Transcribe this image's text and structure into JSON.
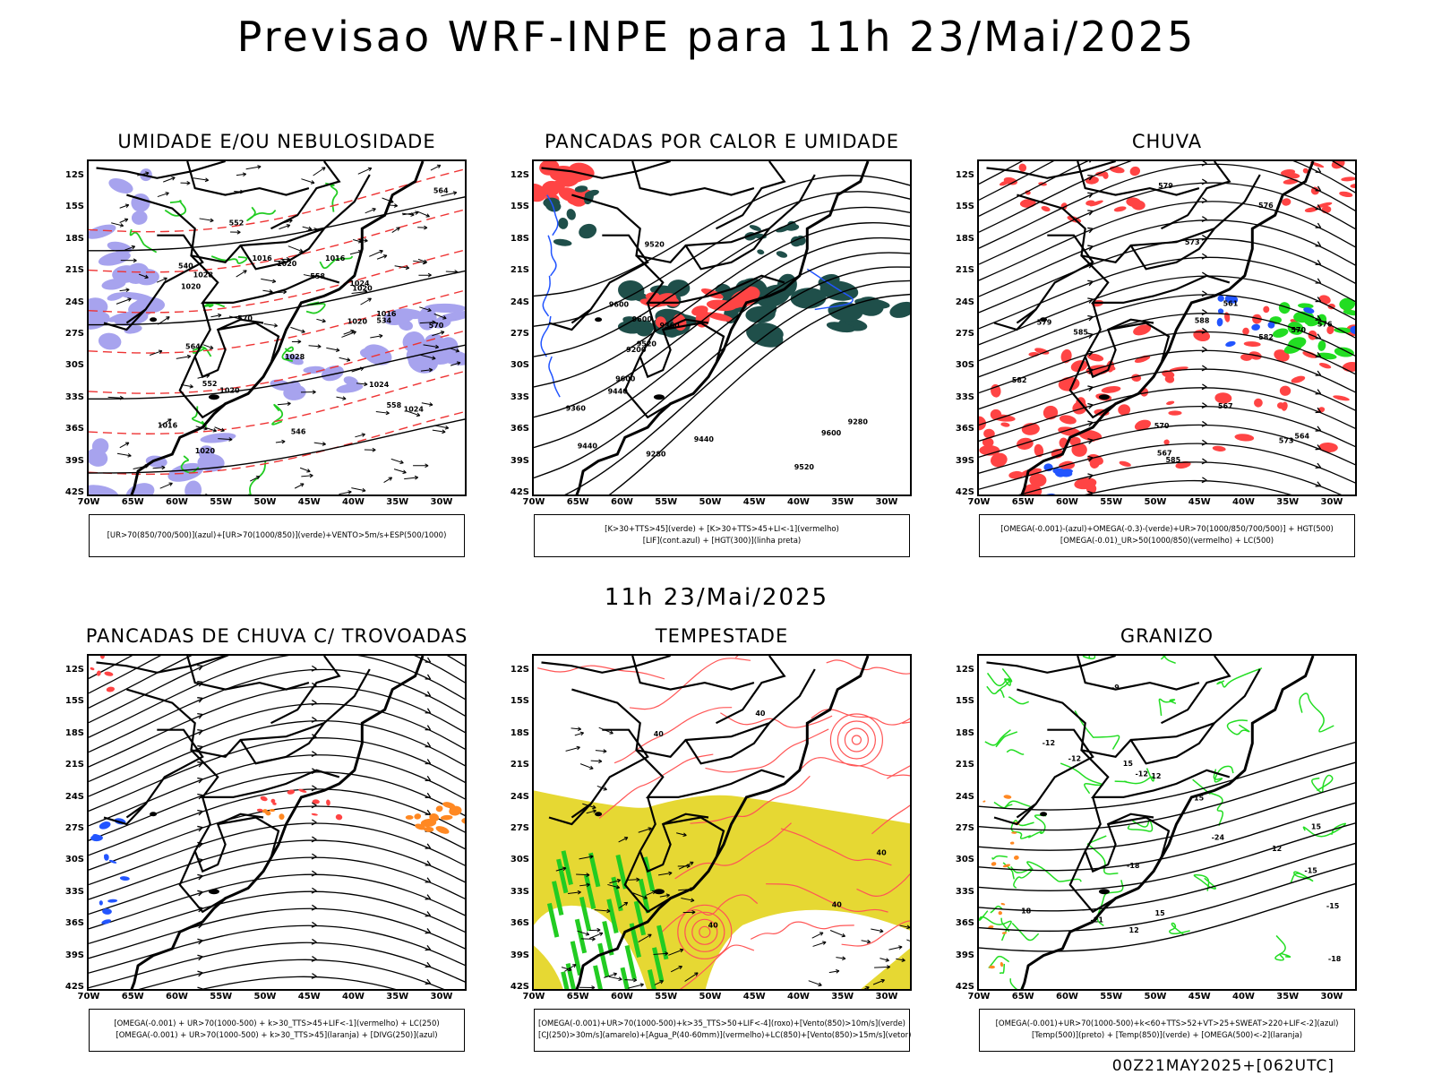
{
  "title": "Previsao WRF-INPE  para 11h 23/Mai/2025",
  "mid_title": "11h 23/Mai/2025",
  "footer": "00Z21MAY2025+[062UTC]",
  "lat_labels": [
    "12S",
    "15S",
    "18S",
    "21S",
    "24S",
    "27S",
    "30S",
    "33S",
    "36S",
    "39S",
    "42S"
  ],
  "lon_labels": [
    "70W",
    "65W",
    "60W",
    "55W",
    "50W",
    "45W",
    "40W",
    "35W",
    "30W"
  ],
  "colors": {
    "umidade_blue": "#a7a3ee",
    "umidade_green": "#22cc22",
    "thickness_red": "#ee3333",
    "pancadas_red": "#ff4444",
    "pancadas_dark": "#1f4f4a",
    "lif_blue": "#2255ff",
    "chuva_green": "#22dd22",
    "orange": "#ff8822",
    "tempestade_yellow": "#e6d833",
    "tempestade_red": "#ff5555"
  },
  "panels": [
    {
      "title": "UMIDADE E/OU NEBULOSIDADE",
      "legend": [
        "[UR>70(850/700/500)](azul)+[UR>70(1000/850)](verde)+VENTO>5m/s+ESP(500/1000)"
      ],
      "labels": [
        "1016",
        "1016",
        "1020",
        "1024",
        "1020",
        "1020",
        "1020",
        "1020",
        "1024",
        "1028",
        "1028",
        "1020",
        "1016",
        "1016",
        "1024",
        "570",
        "564",
        "558",
        "552",
        "546",
        "540",
        "534",
        "570",
        "564",
        "552",
        "558"
      ]
    },
    {
      "title": "PANCADAS POR CALOR E UMIDADE",
      "legend": [
        "[K>30+TTS>45](verde) + [K>30+TTS>45+LI<-1](vermelho)",
        "[LIF](cont.azul) + [HGT(300)](linha preta)"
      ],
      "labels": [
        "9600",
        "9600",
        "9600",
        "9520",
        "9440",
        "9360",
        "9280",
        "9200",
        "9520",
        "9440",
        "9360",
        "9280",
        "9440",
        "9600",
        "9520"
      ]
    },
    {
      "title": "CHUVA",
      "legend": [
        "[OMEGA(-0.001)-(azul)+OMEGA(-0.3)-(verde)+UR>70(1000/850/700/500)] + HGT(500)",
        "[OMEGA(-0.01)_UR>50(1000/850)(vermelho) + LC(500)"
      ],
      "labels": [
        "585",
        "582",
        "579",
        "576",
        "573",
        "570",
        "567",
        "564",
        "561",
        "588",
        "585",
        "582",
        "579",
        "576",
        "573",
        "570",
        "567"
      ]
    },
    {
      "title": "PANCADAS DE CHUVA C/ TROVOADAS",
      "legend": [
        "[OMEGA(-0.001) + UR>70(1000-500) + k>30_TTS>45+LIF<-1](vermelho) + LC(250)",
        "[OMEGA(-0.001) + UR>70(1000-500) + k>30_TTS>45](laranja) + [DIVG(250)](azul)"
      ],
      "labels": []
    },
    {
      "title": "TEMPESTADE",
      "legend": [
        "[OMEGA(-0.001)+UR>70(1000-500)+k>35_TTS>50+LIF<-4](roxo)+[Vento(850)>10m/s](verde)",
        "[CJ(250)>30m/s](amarelo)+[Agua_P(40-60mm)](vermelho)+LC(850)+[Vento(850)>15m/s](vetor)"
      ],
      "labels": [
        "40",
        "40",
        "40",
        "40",
        "40"
      ]
    },
    {
      "title": "GRANIZO",
      "legend": [
        "[OMEGA(-0.001)+UR>70(1000-500)+k<60+TTS>52+VT>25+SWEAT>220+LIF<-2](azul)",
        "[Temp(500)](preto) + [Temp(850)](verde) + [OMEGA(500)<-2](laranja)"
      ],
      "labels": [
        "-9",
        "-12",
        "-15",
        "-18",
        "-21",
        "-24",
        "-12",
        "-15",
        "-18",
        "-12",
        "15",
        "15",
        "15",
        "12",
        "18",
        "15",
        "12",
        "12"
      ]
    }
  ]
}
